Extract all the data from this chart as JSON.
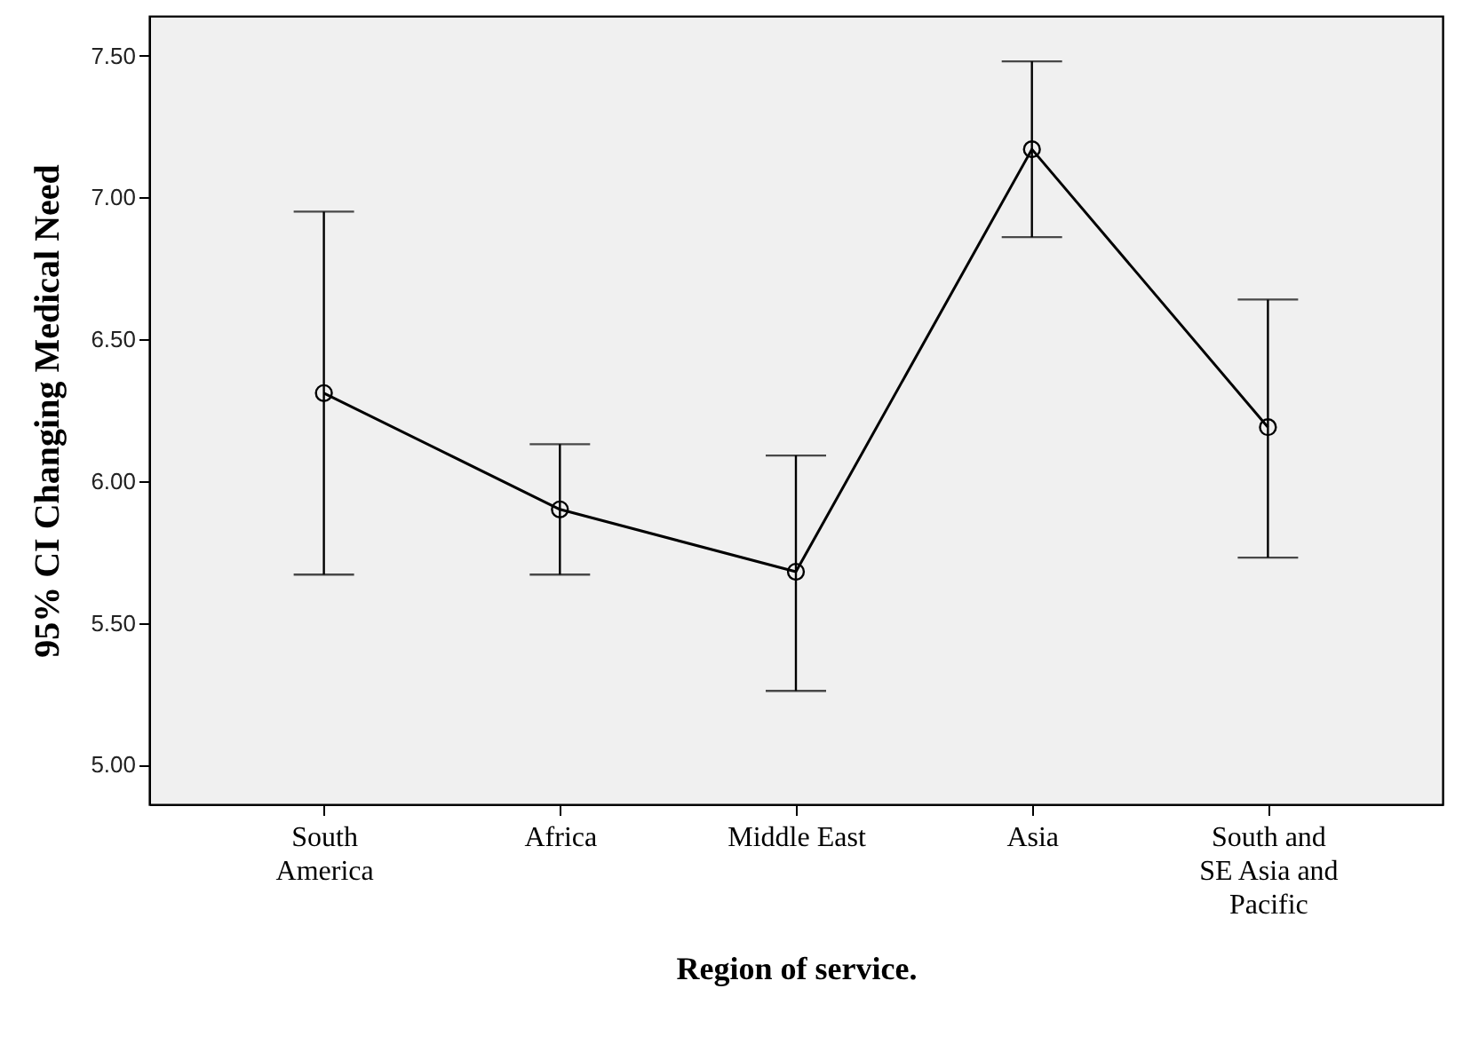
{
  "chart_data": {
    "type": "line",
    "xlabel": "Region of service.",
    "ylabel": "95% CI Changing Medical Need",
    "categories": [
      "South America",
      "Africa",
      "Middle East",
      "Asia",
      "South and SE Asia and Pacific"
    ],
    "series": [
      {
        "color": "#000000",
        "values": [
          6.31,
          5.9,
          5.68,
          7.17,
          6.19
        ],
        "errors": [
          [
            5.67,
            6.95
          ],
          [
            5.67,
            6.13
          ],
          [
            5.26,
            6.09
          ],
          [
            6.86,
            7.48
          ],
          [
            5.73,
            6.64
          ]
        ]
      }
    ],
    "ylim": [
      4.86,
      7.64
    ],
    "yticks": [
      {
        "value": 5,
        "label": "5.00"
      },
      {
        "value": 5.5,
        "label": "5.50"
      },
      {
        "value": 6,
        "label": "6.00"
      },
      {
        "value": 6.5,
        "label": "6.50"
      },
      {
        "value": 7,
        "label": "7.00"
      },
      {
        "value": 7.5,
        "label": "7.50"
      }
    ],
    "marker": "circle",
    "line_style": "solid"
  }
}
